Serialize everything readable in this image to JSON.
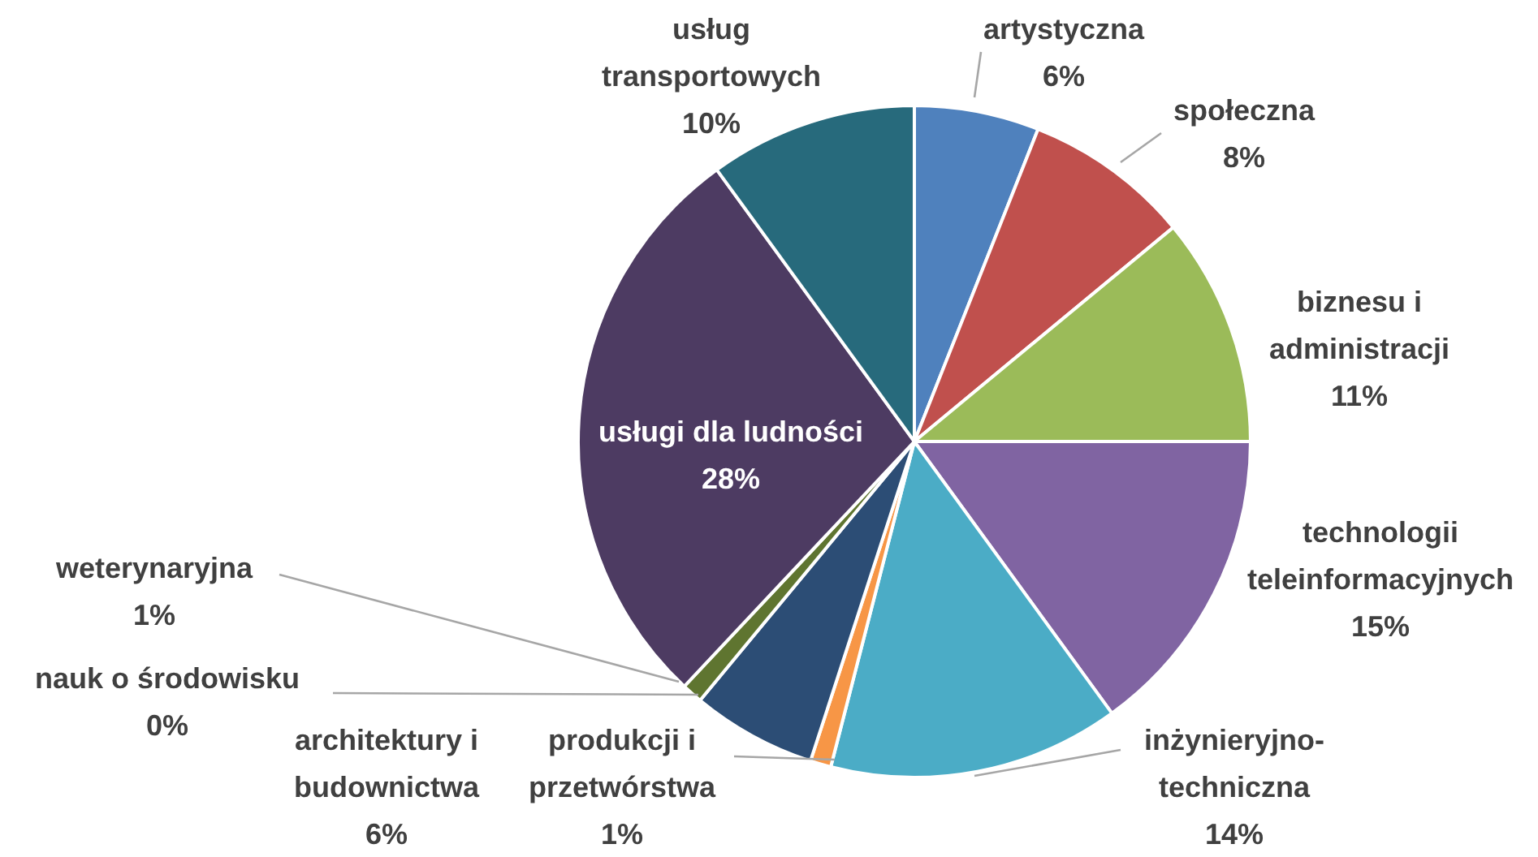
{
  "chart_data": {
    "type": "pie",
    "categories": [
      "artystyczna",
      "społeczna",
      "biznesu i\nadministracji",
      "technologii\nteleinformacyjnych",
      "inżynieryjno-\ntechniczna",
      "produkcji i\nprzetwórstwa",
      "architektury i\nbudownictwa",
      "nauk o środowisku",
      "weterynaryjna",
      "usługi dla ludności",
      "usług\ntransportowych"
    ],
    "values": [
      6,
      8,
      11,
      15,
      14,
      1,
      6,
      0,
      1,
      28,
      10
    ],
    "value_labels": [
      "6%",
      "8%",
      "11%",
      "15%",
      "14%",
      "1%",
      "6%",
      "0%",
      "1%",
      "28%",
      "10%"
    ],
    "colors": [
      "#4f81bd",
      "#c0504d",
      "#9bbb59",
      "#8064a2",
      "#4bacc6",
      "#f79646",
      "#2c4d75",
      "#772c2a",
      "#5f7530",
      "#4d3b62",
      "#276a7c"
    ]
  }
}
